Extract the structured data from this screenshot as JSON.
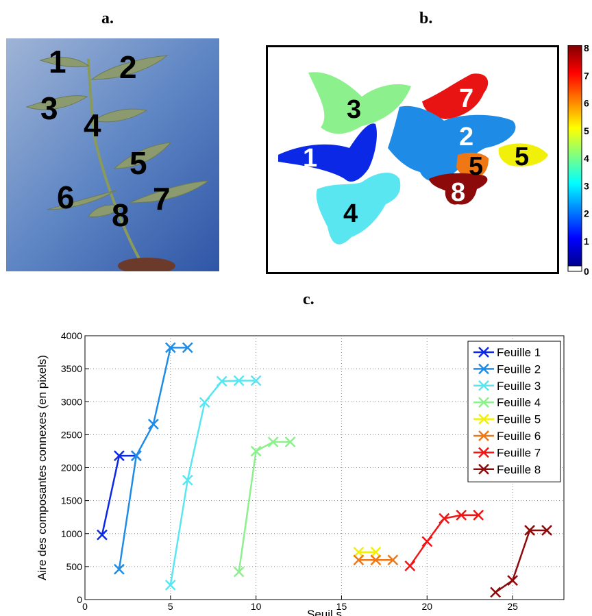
{
  "panels": {
    "a": "a.",
    "b": "b.",
    "c": "c."
  },
  "photo": {
    "leaf_numbers": [
      "1",
      "2",
      "3",
      "4",
      "5",
      "6",
      "7",
      "8"
    ]
  },
  "segmentation": {
    "leaf_numbers": [
      "3",
      "7",
      "2",
      "1",
      "5",
      "5",
      "8",
      "4"
    ],
    "colorbar_ticks": [
      "0",
      "1",
      "2",
      "3",
      "4",
      "5",
      "6",
      "7",
      "8"
    ]
  },
  "colors": {
    "Feuille 1": "#0a28e6",
    "Feuille 2": "#1e8ce6",
    "Feuille 3": "#5ae6f0",
    "Feuille 4": "#8cf08c",
    "Feuille 5": "#f0f00a",
    "Feuille 6": "#f07814",
    "Feuille 7": "#f01414",
    "Feuille 8": "#8c0a0a"
  },
  "chart_data": {
    "type": "line",
    "xlabel": "Seuil s",
    "ylabel": "Aire des composantes connexes (en pixels)",
    "xlim": [
      0,
      28
    ],
    "ylim": [
      0,
      4000
    ],
    "xticks": [
      0,
      5,
      10,
      15,
      20,
      25
    ],
    "yticks": [
      0,
      500,
      1000,
      1500,
      2000,
      2500,
      3000,
      3500,
      4000
    ],
    "grid": true,
    "legend": "top-right",
    "series": [
      {
        "name": "Feuille 1",
        "x": [
          1,
          2,
          3
        ],
        "y": [
          980,
          2180,
          2180
        ]
      },
      {
        "name": "Feuille 2",
        "x": [
          2,
          3,
          4,
          5,
          6
        ],
        "y": [
          460,
          2180,
          2660,
          3820,
          3820
        ]
      },
      {
        "name": "Feuille 3",
        "x": [
          5,
          6,
          7,
          8,
          9,
          10
        ],
        "y": [
          220,
          1810,
          2990,
          3310,
          3320,
          3320
        ]
      },
      {
        "name": "Feuille 4",
        "x": [
          9,
          10,
          11,
          12
        ],
        "y": [
          420,
          2250,
          2390,
          2390
        ]
      },
      {
        "name": "Feuille 5",
        "x": [
          16,
          17
        ],
        "y": [
          720,
          720
        ]
      },
      {
        "name": "Feuille 6",
        "x": [
          16,
          17,
          18
        ],
        "y": [
          600,
          600,
          600
        ]
      },
      {
        "name": "Feuille 7",
        "x": [
          19,
          20,
          21,
          22,
          23
        ],
        "y": [
          510,
          880,
          1230,
          1280,
          1280
        ]
      },
      {
        "name": "Feuille 8",
        "x": [
          24,
          25,
          26,
          27
        ],
        "y": [
          110,
          290,
          1050,
          1050
        ]
      }
    ]
  }
}
